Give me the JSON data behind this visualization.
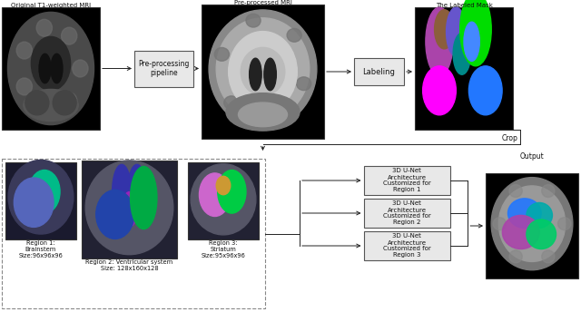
{
  "top_labels": [
    "Original T1-weighted MRI",
    "Pre-processed MRI",
    "The Labeled Mask"
  ],
  "box_labels": [
    "Pre-processing\npipeline",
    "Labeling"
  ],
  "bottom_labels": [
    "Region 1:\nBrainstem\nSize:96x96x96",
    "Region 2: Ventricular system\nSize: 128x160x128",
    "Region 3:\nStriatum\nSize:95x96x96"
  ],
  "unet_labels": [
    "3D U-Net\nArchitecture\nCustomized for\nRegion 1",
    "3D U-Net\nArchitecture\nCustomized for\nRegion 2",
    "3D U-Net\nArchitecture\nCustomized for\nRegion 3"
  ],
  "output_label": "Output",
  "crop_label": "Crop",
  "bg_color": "#ffffff",
  "box_facecolor": "#e8e8e8",
  "box_edgecolor": "#555555",
  "arrow_color": "#222222",
  "text_color": "#111111"
}
